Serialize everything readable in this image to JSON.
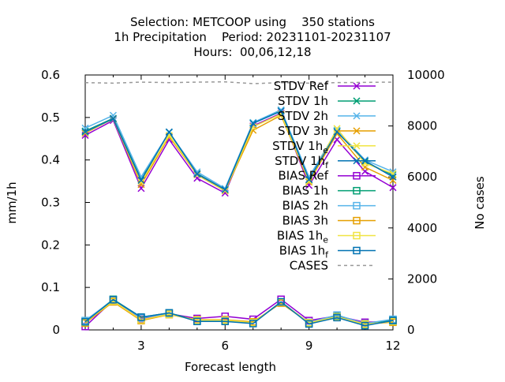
{
  "chart_data": {
    "type": "line",
    "title_lines": [
      "Selection: METCOOP using    350 stations",
      "1h Precipitation    Period: 20231101-20231107",
      "Hours:  00,06,12,18"
    ],
    "xlabel": "Forecast length",
    "ylabel": "mm/1h",
    "y2label": "No cases",
    "xlim": [
      1,
      12
    ],
    "ylim": [
      0,
      0.6
    ],
    "y2lim": [
      0,
      10000
    ],
    "xticks": [
      3,
      6,
      9,
      12
    ],
    "yticks": [
      0,
      0.1,
      0.2,
      0.3,
      0.4,
      0.5,
      0.6
    ],
    "y2ticks": [
      0,
      2000,
      4000,
      6000,
      8000,
      10000
    ],
    "legend_position": "top-right",
    "x": [
      1,
      2,
      3,
      4,
      5,
      6,
      7,
      8,
      9,
      10,
      11,
      12
    ],
    "series": [
      {
        "name": "STDV Ref",
        "name_sub": "",
        "color": "#9400d3",
        "marker": "x",
        "axis": "y1",
        "values": [
          0.458,
          0.493,
          0.333,
          0.448,
          0.357,
          0.322,
          0.48,
          0.51,
          0.34,
          0.448,
          0.373,
          0.335
        ]
      },
      {
        "name": "STDV 1h",
        "name_sub": "",
        "color": "#009e73",
        "marker": "x",
        "axis": "y1",
        "values": [
          0.468,
          0.498,
          0.355,
          0.465,
          0.368,
          0.33,
          0.488,
          0.516,
          0.352,
          0.468,
          0.395,
          0.365
        ]
      },
      {
        "name": "STDV 2h",
        "name_sub": "",
        "color": "#56b4e9",
        "marker": "x",
        "axis": "y1",
        "values": [
          0.475,
          0.505,
          0.36,
          0.465,
          0.372,
          0.333,
          0.488,
          0.518,
          0.36,
          0.47,
          0.4,
          0.372
        ]
      },
      {
        "name": "STDV 3h",
        "name_sub": "",
        "color": "#e69f00",
        "marker": "x",
        "axis": "y1",
        "values": [
          0.463,
          0.497,
          0.342,
          0.455,
          0.365,
          0.327,
          0.47,
          0.505,
          0.348,
          0.462,
          0.383,
          0.352
        ]
      },
      {
        "name": "STDV 1h",
        "name_sub": "e",
        "color": "#f0e442",
        "marker": "x",
        "axis": "y1",
        "values": [
          0.465,
          0.496,
          0.348,
          0.458,
          0.366,
          0.328,
          0.478,
          0.508,
          0.35,
          0.474,
          0.392,
          0.368
        ]
      },
      {
        "name": "STDV 1h",
        "name_sub": "f",
        "color": "#0072b2",
        "marker": "x",
        "axis": "y1",
        "values": [
          0.466,
          0.497,
          0.352,
          0.466,
          0.367,
          0.33,
          0.486,
          0.515,
          0.354,
          0.466,
          0.398,
          0.36
        ]
      },
      {
        "name": "BIAS Ref",
        "name_sub": "",
        "color": "#9400d3",
        "marker": "square",
        "axis": "y1",
        "values": [
          0.008,
          0.07,
          0.025,
          0.038,
          0.027,
          0.032,
          0.025,
          0.072,
          0.022,
          0.033,
          0.018,
          0.02
        ]
      },
      {
        "name": "BIAS 1h",
        "name_sub": "",
        "color": "#009e73",
        "marker": "square",
        "axis": "y1",
        "values": [
          0.02,
          0.072,
          0.03,
          0.04,
          0.022,
          0.022,
          0.016,
          0.066,
          0.016,
          0.032,
          0.012,
          0.024
        ]
      },
      {
        "name": "BIAS 2h",
        "name_sub": "",
        "color": "#56b4e9",
        "marker": "square",
        "axis": "y1",
        "values": [
          0.022,
          0.071,
          0.028,
          0.039,
          0.021,
          0.021,
          0.018,
          0.064,
          0.018,
          0.035,
          0.015,
          0.025
        ]
      },
      {
        "name": "BIAS 3h",
        "name_sub": "",
        "color": "#e69f00",
        "marker": "square",
        "axis": "y1",
        "values": [
          0.016,
          0.066,
          0.022,
          0.036,
          0.024,
          0.024,
          0.019,
          0.063,
          0.017,
          0.03,
          0.014,
          0.018
        ]
      },
      {
        "name": "BIAS 1h",
        "name_sub": "e",
        "color": "#f0e442",
        "marker": "square",
        "axis": "y1",
        "values": [
          0.018,
          0.068,
          0.024,
          0.037,
          0.023,
          0.023,
          0.017,
          0.065,
          0.017,
          0.031,
          0.013,
          0.02
        ]
      },
      {
        "name": "BIAS 1h",
        "name_sub": "f",
        "color": "#0072b2",
        "marker": "square",
        "axis": "y1",
        "values": [
          0.019,
          0.071,
          0.03,
          0.04,
          0.02,
          0.02,
          0.015,
          0.066,
          0.014,
          0.029,
          0.01,
          0.022
        ]
      },
      {
        "name": "CASES",
        "name_sub": "",
        "color": "#999999",
        "marker": "none",
        "dashed": true,
        "axis": "y2",
        "values": [
          9700,
          9680,
          9720,
          9700,
          9720,
          9730,
          9660,
          9700,
          9680,
          9700,
          9710,
          9720
        ]
      }
    ]
  }
}
